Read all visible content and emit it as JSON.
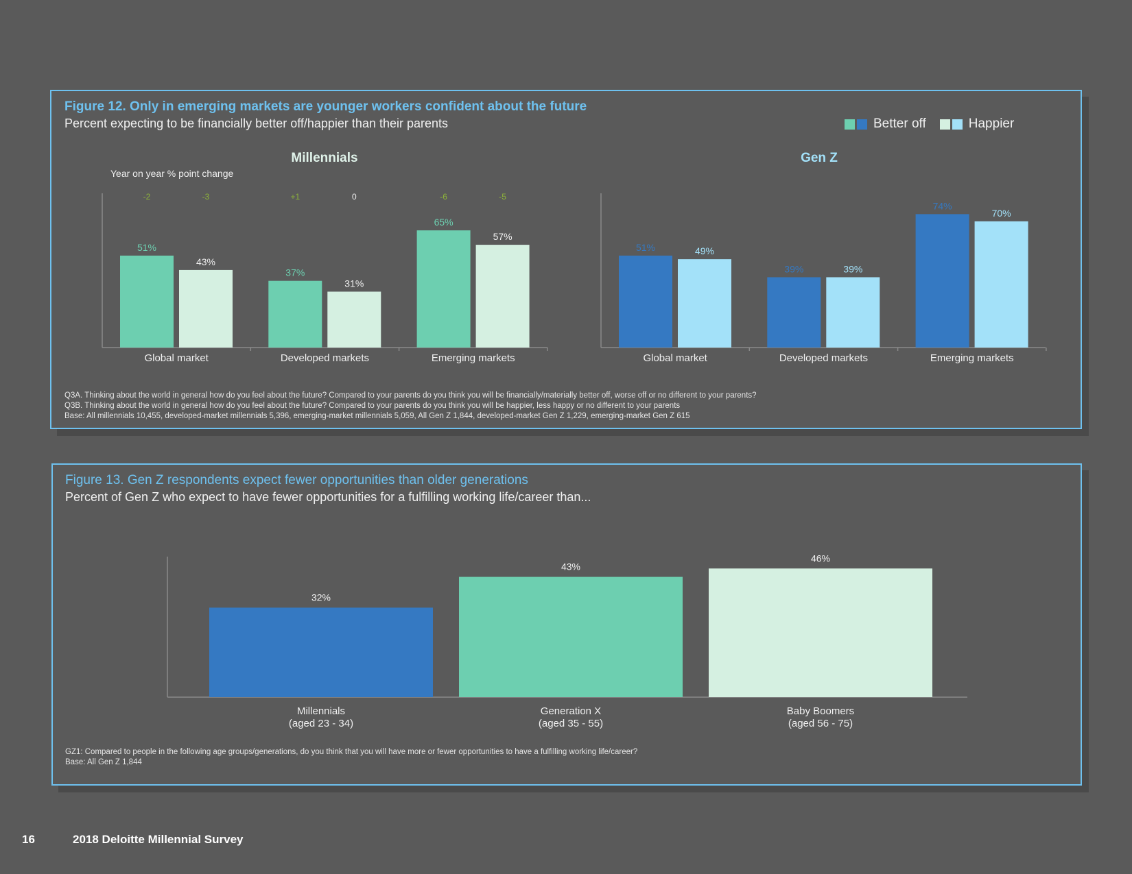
{
  "colors": {
    "millennials_better": "#6dcfb0",
    "millennials_happier": "#d5f0e1",
    "genz_better": "#3579c2",
    "genz_happier": "#a3e1f9",
    "change_text": "#8db33a",
    "accent": "#6ec1ef",
    "axis": "#8a8a8a"
  },
  "figure12": {
    "title": "Figure 12. Only in emerging markets are younger workers confident about the future",
    "subtitle": "Percent expecting to be financially better off/happier than their parents",
    "legend": {
      "better_off": "Better off",
      "happier": "Happier"
    },
    "notes": [
      "Q3A. Thinking about the world in general how do you feel about the future? Compared to your parents do you think you will be financially/materially better off, worse off or no different to your parents?",
      "Q3B. Thinking about the world in general how do you feel about the future? Compared to your parents do you think you will be happier, less happy or no different to your parents",
      "Base: All millennials 10,455, developed-market millennials 5,396, emerging-market millennials 5,059, All Gen Z 1,844, developed-market Gen Z 1,229, emerging-market Gen Z 615"
    ]
  },
  "figure13": {
    "title": "Figure 13. Gen Z respondents expect fewer opportunities than older generations",
    "subtitle": "Percent of Gen Z who expect to have fewer opportunities for a fulfilling working life/career than...",
    "notes": [
      "GZ1: Compared to people in the following age groups/generations, do you think that you will have more or fewer opportunities to have a fulfilling working life/career?",
      "Base: All Gen Z 1,844"
    ]
  },
  "footer": {
    "page_number": "16",
    "doc_title": "2018 Deloitte Millennial Survey"
  },
  "chart_data": [
    {
      "type": "bar",
      "title": "Millennials",
      "annotation": "Year on year % point change",
      "categories": [
        "Global market",
        "Developed markets",
        "Emerging markets"
      ],
      "ylim": [
        0,
        100
      ],
      "series": [
        {
          "name": "Better off",
          "values": [
            51,
            37,
            65
          ],
          "labels": [
            "51%",
            "37%",
            "65%"
          ],
          "change": [
            "-2",
            "+1",
            "-6"
          ]
        },
        {
          "name": "Happier",
          "values": [
            43,
            31,
            57
          ],
          "labels": [
            "43%",
            "31%",
            "57%"
          ],
          "change": [
            "-3",
            "0",
            "-5"
          ]
        }
      ]
    },
    {
      "type": "bar",
      "title": "Gen Z",
      "categories": [
        "Global market",
        "Developed markets",
        "Emerging markets"
      ],
      "ylim": [
        0,
        100
      ],
      "series": [
        {
          "name": "Better off",
          "values": [
            51,
            39,
            74
          ],
          "labels": [
            "51%",
            "39%",
            "74%"
          ]
        },
        {
          "name": "Happier",
          "values": [
            49,
            39,
            70
          ],
          "labels": [
            "49%",
            "39%",
            "70%"
          ]
        }
      ]
    },
    {
      "type": "bar",
      "categories": [
        [
          "Millennials",
          "(aged 23 - 34)"
        ],
        [
          "Generation X",
          "(aged 35 - 55)"
        ],
        [
          "Baby Boomers",
          "(aged 56 - 75)"
        ]
      ],
      "values": [
        32,
        43,
        46
      ],
      "labels": [
        "32%",
        "43%",
        "46%"
      ],
      "colors": [
        "#3579c2",
        "#6dcfb0",
        "#d5f0e1"
      ],
      "ylim": [
        0,
        100
      ]
    }
  ]
}
